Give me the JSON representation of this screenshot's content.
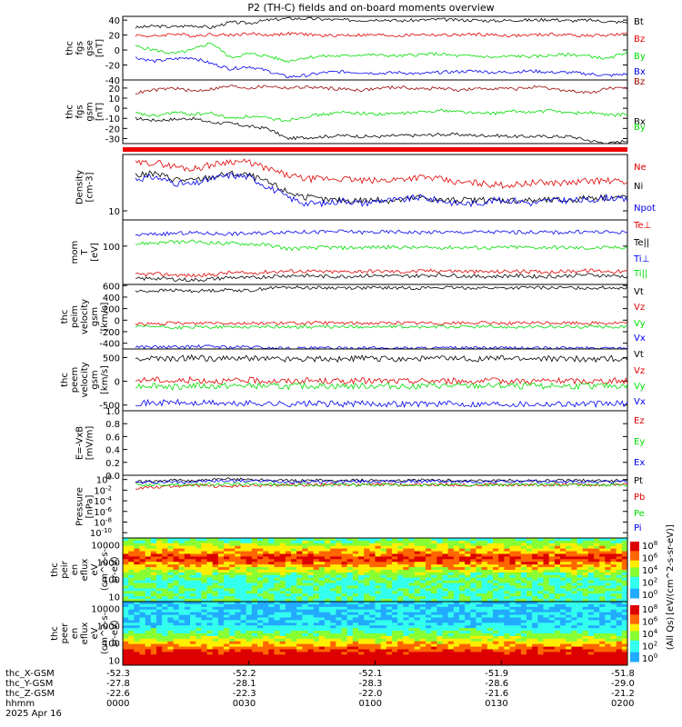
{
  "title": "P2 (TH-C) fields and on-board moments overview",
  "colors": {
    "black": "#000000",
    "red": "#e00000",
    "green": "#00dd00",
    "blue": "#0000ee",
    "darkred": "#990000",
    "banner": "#ee0000"
  },
  "chart_data": [
    {
      "id": "fgs_gse",
      "type": "line",
      "ylabel": [
        "thc",
        "fgs",
        "gse",
        "[nT]"
      ],
      "yticks": [
        "40",
        "20",
        "0",
        "-20",
        "-40"
      ],
      "ylim": [
        -40,
        45
      ],
      "series": [
        {
          "name": "Bt",
          "color": "black",
          "values": [
            30,
            32,
            31,
            33,
            30,
            37,
            36,
            40,
            42,
            42,
            41,
            40,
            40,
            41,
            39,
            40,
            41,
            40,
            40,
            39,
            40,
            40,
            41,
            39,
            40,
            38,
            37
          ]
        },
        {
          "name": "Bz",
          "color": "red",
          "values": [
            20,
            18,
            22,
            19,
            21,
            20,
            22,
            20,
            22,
            21,
            19,
            20,
            20,
            20,
            19,
            21,
            20,
            20,
            21,
            20,
            19,
            20,
            21,
            20,
            19,
            20,
            21
          ]
        },
        {
          "name": "By",
          "color": "green",
          "values": [
            5,
            0,
            -5,
            0,
            10,
            -10,
            -5,
            -8,
            -15,
            -10,
            -8,
            -8,
            -6,
            -7,
            -8,
            -6,
            -5,
            -8,
            -8,
            -10,
            -8,
            -9,
            -7,
            -6,
            -8,
            -12,
            -2
          ]
        },
        {
          "name": "Bx",
          "color": "blue",
          "values": [
            -10,
            -15,
            -12,
            -10,
            -18,
            -25,
            -22,
            -28,
            -36,
            -34,
            -30,
            -29,
            -30,
            -31,
            -30,
            -32,
            -30,
            -29,
            -28,
            -30,
            -29,
            -28,
            -30,
            -30,
            -32,
            -34,
            -32
          ]
        }
      ]
    },
    {
      "id": "fgs_gsm",
      "type": "line",
      "ylabel": [
        "thc",
        "fgs",
        "gsm",
        "[nT]"
      ],
      "yticks": [
        "20",
        "10",
        "0",
        "-10",
        "-20",
        "-30"
      ],
      "ylim": [
        -35,
        28
      ],
      "series": [
        {
          "name": "Bz",
          "color": "darkred",
          "values": [
            15,
            18,
            20,
            17,
            19,
            22,
            20,
            22,
            20,
            21,
            20,
            19,
            18,
            20,
            21,
            19,
            20,
            18,
            19,
            20,
            19,
            21,
            19,
            17,
            15,
            20,
            19
          ]
        },
        {
          "name": "Bx",
          "color": "black",
          "values": [
            -10,
            -12,
            -11,
            -10,
            -14,
            -15,
            -18,
            -20,
            -30,
            -29,
            -28,
            -27,
            -28,
            -28,
            -27,
            -27,
            -26,
            -26,
            -27,
            -27,
            -28,
            -28,
            -28,
            -28,
            -32,
            -35,
            -32
          ]
        },
        {
          "name": "By",
          "color": "green",
          "values": [
            -5,
            -8,
            -4,
            -6,
            -5,
            -10,
            -8,
            -10,
            -12,
            -8,
            -6,
            -4,
            -5,
            -6,
            -5,
            -4,
            -2,
            -3,
            -5,
            -5,
            -3,
            -4,
            -2,
            -5,
            -4,
            -7,
            -6
          ]
        }
      ]
    },
    {
      "id": "density",
      "type": "line",
      "ylabel": [
        "Density",
        "[cm-3]"
      ],
      "yticks": [
        "10"
      ],
      "ylim": [
        8,
        40
      ],
      "series": [
        {
          "name": "Ne",
          "color": "red",
          "values": [
            32,
            33,
            30,
            28,
            31,
            34,
            33,
            28,
            24,
            22,
            22,
            22,
            21,
            21,
            22,
            23,
            22,
            20,
            20,
            19,
            19,
            20,
            20,
            20,
            21,
            21,
            20
          ]
        },
        {
          "name": "Ni",
          "color": "black",
          "values": [
            24,
            25,
            22,
            21,
            23,
            25,
            24,
            20,
            16,
            14,
            13,
            13,
            13,
            13,
            13,
            14,
            13,
            13,
            13,
            13,
            13,
            13,
            13,
            13,
            14,
            14,
            14
          ]
        },
        {
          "name": "Npot",
          "color": "blue",
          "values": [
            22,
            23,
            20,
            19,
            22,
            24,
            23,
            18,
            14,
            12,
            12,
            13,
            12,
            13,
            13,
            14,
            13,
            12,
            12,
            13,
            13,
            12,
            13,
            13,
            13,
            14,
            13
          ]
        }
      ]
    },
    {
      "id": "moments_temp",
      "type": "line",
      "ylabel": [
        "mom",
        "T",
        "[eV]"
      ],
      "yticks": [
        "100"
      ],
      "ylim": [
        20,
        300
      ],
      "series": [
        {
          "name": "Te⊥",
          "color": "red",
          "values": [
            30,
            31,
            30,
            29,
            30,
            33,
            32,
            34,
            35,
            35,
            34,
            34,
            35,
            35,
            34,
            35,
            36,
            35,
            34,
            34,
            35,
            34,
            34,
            35,
            36,
            35,
            34
          ]
        },
        {
          "name": "Te||",
          "color": "black",
          "values": [
            25,
            26,
            25,
            24,
            25,
            27,
            26,
            28,
            29,
            29,
            28,
            28,
            29,
            29,
            28,
            29,
            30,
            29,
            28,
            28,
            29,
            28,
            28,
            29,
            30,
            29,
            28
          ]
        },
        {
          "name": "Ti⊥",
          "color": "blue",
          "values": [
            160,
            165,
            170,
            175,
            170,
            168,
            170,
            175,
            185,
            180,
            182,
            185,
            178,
            180,
            182,
            178,
            180,
            178,
            182,
            180,
            179,
            181,
            178,
            180,
            182,
            179,
            180
          ]
        },
        {
          "name": "Ti||",
          "color": "green",
          "values": [
            110,
            115,
            118,
            120,
            115,
            112,
            110,
            105,
            90,
            92,
            95,
            93,
            94,
            96,
            95,
            93,
            94,
            95,
            94,
            93,
            96,
            94,
            95,
            93,
            92,
            94,
            95
          ]
        }
      ]
    },
    {
      "id": "peim_velocity",
      "type": "line",
      "ylabel": [
        "thc",
        "peim",
        "velocity",
        "gsm",
        "[km/s]"
      ],
      "yticks": [
        "600",
        "400",
        "200",
        "0",
        "-200",
        "-400"
      ],
      "ylim": [
        -500,
        620
      ],
      "series": [
        {
          "name": "Vt",
          "color": "black",
          "values": [
            500,
            510,
            520,
            505,
            515,
            530,
            510,
            560,
            570,
            565,
            560,
            565,
            560,
            562,
            558,
            560,
            565,
            560,
            562,
            558,
            560,
            565,
            560,
            562,
            560,
            565,
            560
          ]
        },
        {
          "name": "Vz",
          "color": "red",
          "values": [
            -60,
            -70,
            -50,
            -60,
            -40,
            -50,
            -55,
            -50,
            -55,
            -52,
            -48,
            -50,
            -52,
            -50,
            -48,
            -50,
            -52,
            -50,
            -48,
            -50,
            -52,
            -50,
            -48,
            -50,
            -52,
            -50,
            -48
          ]
        },
        {
          "name": "Vy",
          "color": "green",
          "values": [
            -120,
            -110,
            -130,
            -125,
            -120,
            -115,
            -118,
            -112,
            -115,
            -118,
            -120,
            -115,
            -112,
            -118,
            -115,
            -120,
            -118,
            -115,
            -112,
            -118,
            -115,
            -120,
            -118,
            -115,
            -112,
            -118,
            -115
          ]
        },
        {
          "name": "Vx",
          "color": "blue",
          "values": [
            -460,
            -465,
            -470,
            -460,
            -455,
            -470,
            -465,
            -480,
            -490,
            -488,
            -485,
            -486,
            -484,
            -485,
            -487,
            -485,
            -484,
            -486,
            -485,
            -484,
            -486,
            -485,
            -487,
            -484,
            -485,
            -486,
            -485
          ]
        }
      ]
    },
    {
      "id": "peem_velocity",
      "type": "line",
      "ylabel": [
        "thc",
        "peem",
        "velocity",
        "gsm",
        "[km/s]"
      ],
      "yticks": [
        "500",
        "0",
        "-500"
      ],
      "ylim": [
        -620,
        680
      ],
      "series": [
        {
          "name": "Vt",
          "color": "black",
          "values": [
            470,
            480,
            460,
            500,
            480,
            470,
            490,
            480,
            470,
            480,
            475,
            470,
            480,
            478,
            472,
            476,
            480,
            474,
            470,
            478,
            476,
            472,
            480,
            474,
            470,
            478,
            476
          ]
        },
        {
          "name": "Vz",
          "color": "red",
          "values": [
            20,
            40,
            0,
            30,
            10,
            0,
            20,
            10,
            0,
            15,
            5,
            0,
            10,
            5,
            0,
            8,
            10,
            5,
            0,
            8,
            6,
            4,
            10,
            5,
            0,
            8,
            6
          ]
        },
        {
          "name": "Vy",
          "color": "green",
          "values": [
            -100,
            -80,
            -120,
            -90,
            -110,
            -100,
            -95,
            -105,
            -110,
            -100,
            -95,
            -105,
            -100,
            -98,
            -102,
            -100,
            -96,
            -104,
            -100,
            -98,
            -102,
            -100,
            -96,
            -104,
            -100,
            -98,
            -102
          ]
        },
        {
          "name": "Vx",
          "color": "blue",
          "values": [
            -450,
            -460,
            -440,
            -470,
            -450,
            -480,
            -460,
            -470,
            -480,
            -470,
            -475,
            -480,
            -470,
            -472,
            -478,
            -474,
            -470,
            -476,
            -480,
            -472,
            -474,
            -478,
            -470,
            -476,
            -480,
            -472,
            -474
          ]
        }
      ]
    },
    {
      "id": "efield",
      "type": "line",
      "ylabel": [
        "E=-VxB",
        "[mV/m]"
      ],
      "yticks": [
        "1.0",
        "0.8",
        "0.6",
        "0.4",
        "0.2",
        "0.0"
      ],
      "ylim": [
        0,
        1
      ],
      "series": [
        {
          "name": "Ez",
          "color": "red",
          "values": []
        },
        {
          "name": "Ey",
          "color": "green",
          "values": []
        },
        {
          "name": "Ex",
          "color": "blue",
          "values": []
        }
      ]
    },
    {
      "id": "pressure",
      "type": "line",
      "ylabel": [
        "Pressure",
        "[nPa]"
      ],
      "yticks": [
        "10^0",
        "10^-2",
        "10^-4",
        "10^-6",
        "10^-8",
        "10^-10"
      ],
      "ylim": [
        -11,
        0.8
      ],
      "series": [
        {
          "name": "Pt",
          "color": "black",
          "values": [
            -0.4,
            -0.3,
            -0.2,
            -0.2,
            -0.1,
            0.1,
            0.05,
            -0.1,
            -0.2,
            -0.2,
            -0.2,
            -0.2,
            -0.15,
            -0.15,
            -0.2,
            -0.15,
            -0.15,
            -0.2,
            -0.2,
            -0.2,
            -0.2,
            -0.2,
            -0.2,
            -0.2,
            -0.2,
            -0.2,
            -0.2
          ]
        },
        {
          "name": "Pb",
          "color": "red",
          "values": [
            -1.6,
            -1.4,
            -1.2,
            -1.1,
            -1.2,
            -1.3,
            -1.2,
            -1.1,
            -1.0,
            -1.0,
            -1.0,
            -0.95,
            -1.0,
            -0.95,
            -1.0,
            -1.0,
            -0.95,
            -1.0,
            -1.0,
            -0.95,
            -1.0,
            -1.0,
            -1.0,
            -0.95,
            -1.0,
            -1.0,
            -1.0
          ]
        },
        {
          "name": "Pe",
          "color": "green",
          "values": [
            -1.0,
            -1.0,
            -0.9,
            -1.0,
            -0.9,
            -0.9,
            -0.85,
            -0.9,
            -1.0,
            -1.0,
            -1.0,
            -1.0,
            -1.0,
            -1.0,
            -1.0,
            -1.0,
            -1.0,
            -1.0,
            -1.0,
            -1.0,
            -1.0,
            -1.0,
            -1.0,
            -1.0,
            -1.0,
            -1.0,
            -1.0
          ]
        },
        {
          "name": "Pi",
          "color": "blue",
          "values": [
            -0.6,
            -0.5,
            -0.4,
            -0.4,
            -0.3,
            -0.2,
            -0.25,
            -0.3,
            -0.4,
            -0.4,
            -0.4,
            -0.4,
            -0.35,
            -0.35,
            -0.4,
            -0.35,
            -0.35,
            -0.4,
            -0.4,
            -0.4,
            -0.4,
            -0.4,
            -0.4,
            -0.4,
            -0.4,
            -0.4,
            -0.4
          ]
        }
      ]
    },
    {
      "id": "peir_spec",
      "type": "heatmap",
      "ylabel": [
        "thc",
        "peir",
        "en",
        "eflux",
        "eV",
        "(cm^2-s-",
        "sr-eV)"
      ],
      "yticks": [
        "10000",
        "1000",
        "100",
        "10"
      ],
      "ylim": [
        5,
        25000
      ],
      "colorbar_ticks": [
        "10^8",
        "10^6",
        "10^4",
        "10^2",
        "10^0"
      ],
      "colorbar_label": "[eV/(cm^2-s-sr-eV)]"
    },
    {
      "id": "peer_spec",
      "type": "heatmap",
      "ylabel": [
        "thc",
        "peer",
        "en",
        "eflux",
        "eV",
        "(cm^2-s-",
        "sr-eV)"
      ],
      "yticks": [
        "10000",
        "1000",
        "100",
        "10"
      ],
      "ylim": [
        5,
        25000
      ],
      "colorbar_ticks": [
        "10^8",
        "10^6",
        "10^4",
        "10^2",
        "10^0"
      ],
      "colorbar_label": "(All Qs)"
    }
  ],
  "xaxis": {
    "row_labels": [
      "thc_X-GSM",
      "thc_Y-GSM",
      "thc_Z-GSM",
      "hhmm",
      "2025 Apr 16"
    ],
    "columns": [
      {
        "x": "-52.3",
        "y": "-27.8",
        "z": "-22.6",
        "t": "0000"
      },
      {
        "x": "-52.2",
        "y": "-28.1",
        "z": "-22.3",
        "t": "0030"
      },
      {
        "x": "-52.1",
        "y": "-28.3",
        "z": "-22.0",
        "t": "0100"
      },
      {
        "x": "-51.9",
        "y": "-28.6",
        "z": "-21.6",
        "t": "0130"
      },
      {
        "x": "-51.8",
        "y": "-29.0",
        "z": "-21.2",
        "t": "0200"
      }
    ]
  }
}
